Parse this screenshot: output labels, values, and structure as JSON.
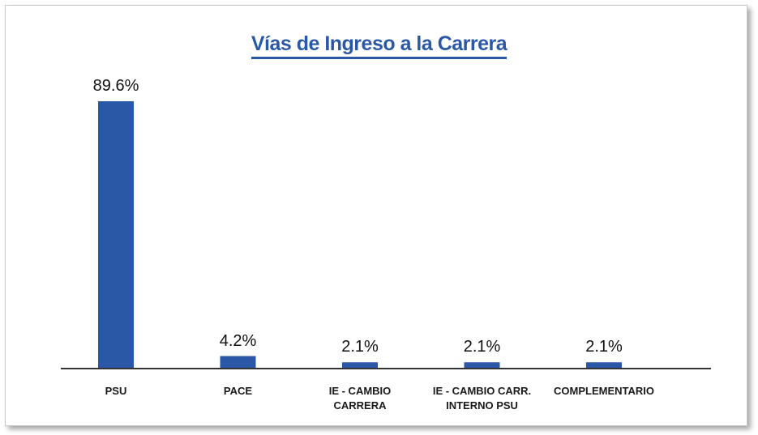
{
  "chart_data": {
    "type": "bar",
    "title": "Vías de Ingreso a la Carrera",
    "categories": [
      "PSU",
      "PACE",
      "IE - CAMBIO CARRERA",
      "IE - CAMBIO CARR. INTERNO PSU",
      "COMPLEMENTARIO"
    ],
    "values": [
      89.6,
      4.2,
      2.1,
      2.1,
      2.1
    ],
    "value_labels": [
      "89.6%",
      "4.2%",
      "2.1%",
      "2.1%",
      "2.1%"
    ],
    "color": "#2b58a6"
  }
}
